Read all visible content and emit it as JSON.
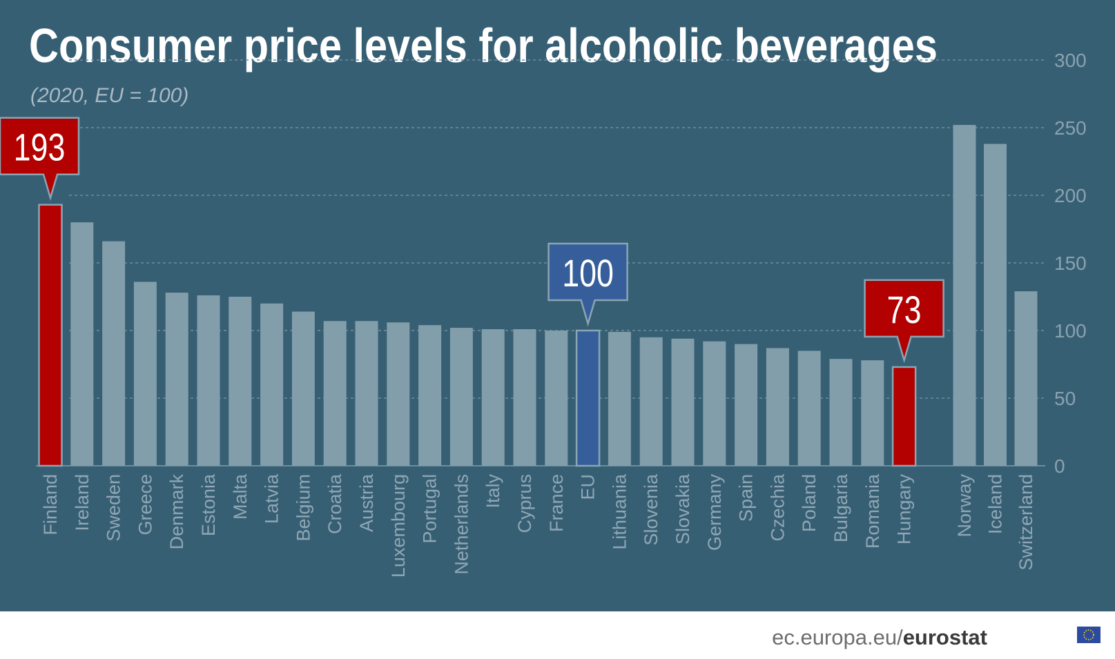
{
  "chart_data": {
    "type": "bar",
    "title": "Consumer price levels for alcoholic beverages",
    "subtitle": "(2020, EU = 100)",
    "categories": [
      "Finland",
      "Ireland",
      "Sweden",
      "Greece",
      "Denmark",
      "Estonia",
      "Malta",
      "Latvia",
      "Belgium",
      "Croatia",
      "Austria",
      "Luxembourg",
      "Portugal",
      "Netherlands",
      "Italy",
      "Cyprus",
      "France",
      "EU",
      "Lithuania",
      "Slovenia",
      "Slovakia",
      "Germany",
      "Spain",
      "Czechia",
      "Poland",
      "Bulgaria",
      "Romania",
      "Hungary",
      "Norway",
      "Iceland",
      "Switzerland"
    ],
    "values": [
      193,
      180,
      166,
      136,
      128,
      126,
      125,
      120,
      114,
      107,
      107,
      106,
      104,
      102,
      101,
      101,
      100,
      100,
      99,
      95,
      94,
      92,
      90,
      87,
      85,
      79,
      78,
      73,
      252,
      238,
      129
    ],
    "highlight": {
      "Finland": "#b30000",
      "EU": "#355e9b",
      "Hungary": "#b30000"
    },
    "callouts": [
      {
        "category": "Finland",
        "label": "193",
        "color": "#b30000"
      },
      {
        "category": "EU",
        "label": "100",
        "color": "#355e9b"
      },
      {
        "category": "Hungary",
        "label": "73",
        "color": "#b30000"
      }
    ],
    "ylim": [
      0,
      300
    ],
    "yticks": [
      "0",
      "50",
      "100",
      "150",
      "200",
      "250",
      "300"
    ],
    "grid": true,
    "colors": {
      "background": "#375f74",
      "bar": "#829eaa",
      "grid": "#6d8d9d"
    }
  },
  "footer": {
    "site": "ec.europa.eu/",
    "brand": "eurostat",
    "flag_icon": "eu-flag-icon"
  }
}
